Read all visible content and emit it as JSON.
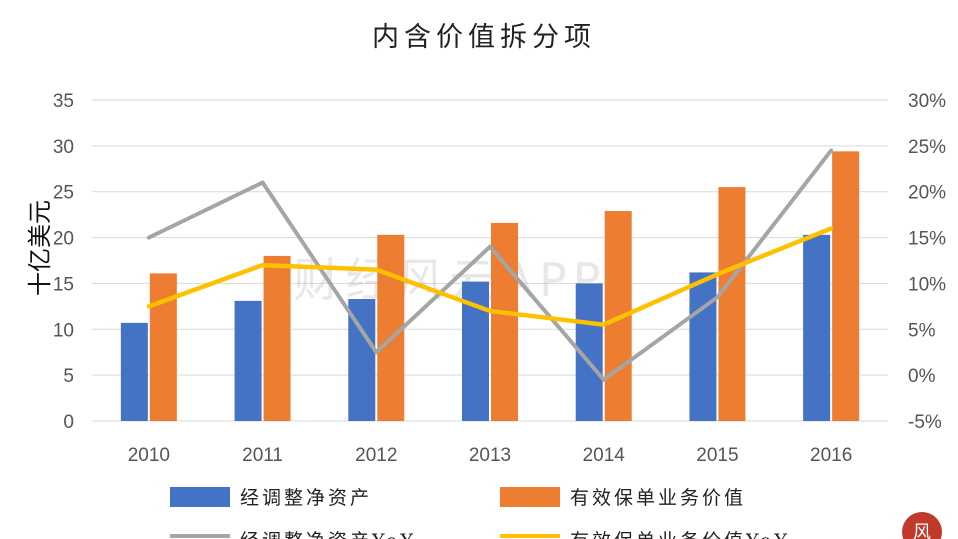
{
  "chart_data": {
    "type": "bar",
    "title": "内含价值拆分项",
    "ylabel": "十亿美元",
    "xlabel": "",
    "categories": [
      "2010",
      "2011",
      "2012",
      "2013",
      "2014",
      "2015",
      "2016"
    ],
    "ylim": [
      0,
      35
    ],
    "y_ticks": [
      "0",
      "5",
      "10",
      "15",
      "20",
      "25",
      "30",
      "35"
    ],
    "y2lim": [
      -5,
      30
    ],
    "y2_ticks": [
      "-5%",
      "0%",
      "5%",
      "10%",
      "15%",
      "20%",
      "25%",
      "30%"
    ],
    "grid": true,
    "legend_position": "bottom",
    "series": [
      {
        "name": "经调整净资产",
        "kind": "bar",
        "axis": "left",
        "color": "#4472C4",
        "values": [
          10.7,
          13.1,
          13.3,
          15.2,
          15.0,
          16.2,
          20.3
        ]
      },
      {
        "name": "有效保单业务价值",
        "kind": "bar",
        "axis": "left",
        "color": "#ED7D31",
        "values": [
          16.1,
          18.0,
          20.3,
          21.6,
          22.9,
          25.5,
          29.4
        ]
      },
      {
        "name": "经调整净资产YoY",
        "kind": "line",
        "axis": "right",
        "color": "#A5A5A5",
        "values": [
          15.0,
          21.0,
          2.5,
          14.0,
          -0.5,
          8.5,
          24.5
        ]
      },
      {
        "name": "有效保单业务价值YoY",
        "kind": "line",
        "axis": "right",
        "color": "#FFC000",
        "values": [
          7.5,
          12.0,
          11.5,
          7.0,
          5.5,
          11.0,
          16.0
        ]
      }
    ],
    "legend_labels": [
      "经调整净资产",
      "有效保单业务价值",
      "经调整净资产YoY",
      "有效保单业务价值YoY"
    ]
  },
  "watermark": "财经风云APP",
  "brand_badge": "风"
}
